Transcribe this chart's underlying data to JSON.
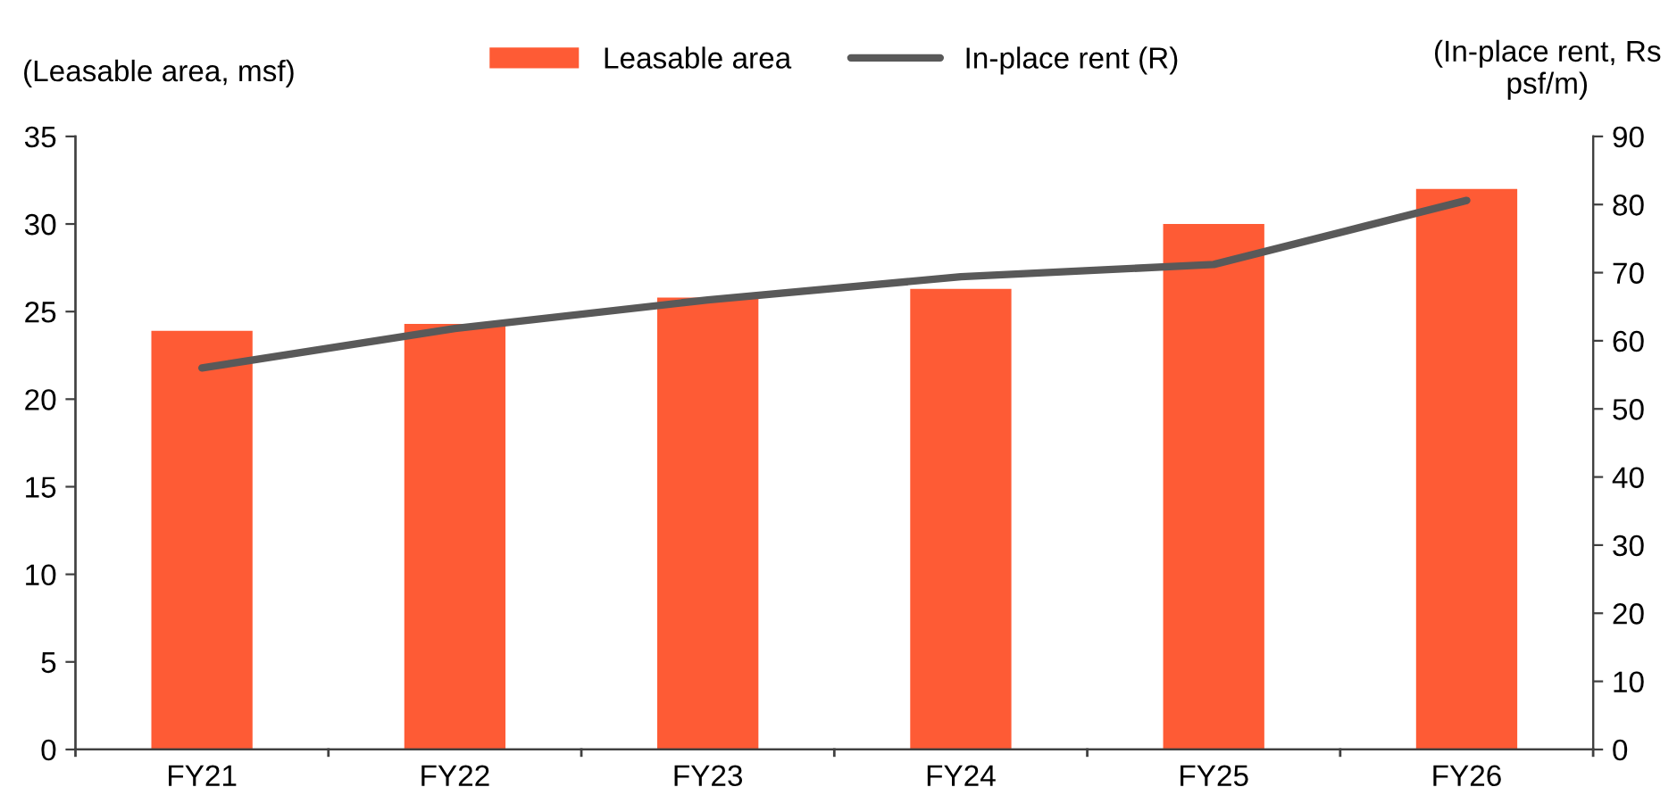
{
  "chart_data": {
    "type": "bar",
    "categories": [
      "FY21",
      "FY22",
      "FY23",
      "FY24",
      "FY25",
      "FY26"
    ],
    "series": [
      {
        "name": "Leasable area",
        "color": "#fe5b35",
        "values": [
          23.9,
          24.3,
          25.8,
          26.3,
          30.0,
          32.0
        ]
      },
      {
        "name": "In-place rent (R)",
        "type": "line",
        "axis": "y2",
        "color": "#595959",
        "values": [
          56,
          61.8,
          66,
          69.4,
          71.2,
          80.6
        ]
      }
    ],
    "ylabel": "(Leasable area, msf)",
    "y2label": "(In-place rent, Rs\npsf/m)",
    "ylim": [
      0,
      35
    ],
    "yticks": [
      0,
      5,
      10,
      15,
      20,
      25,
      30,
      35
    ],
    "y2lim": [
      0,
      90
    ],
    "y2ticks": [
      0,
      10,
      20,
      30,
      40,
      50,
      60,
      70,
      80,
      90
    ],
    "legend": "top",
    "grid": false,
    "marker": "none",
    "line_style": "solid"
  }
}
